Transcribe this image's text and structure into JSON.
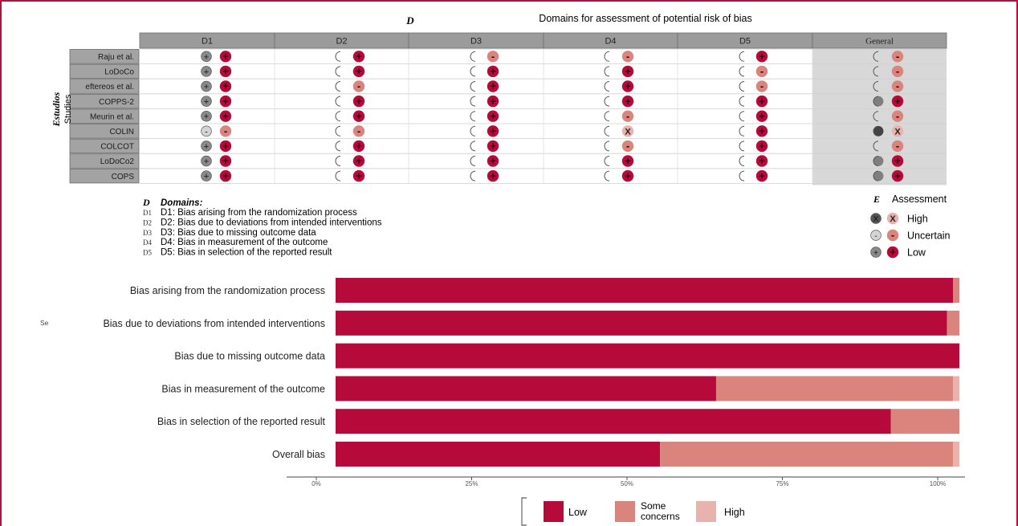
{
  "colors": {
    "low": "#b50a3a",
    "some": "#d9857e",
    "high": "#e8b2ad",
    "header_bg": "#9b9b9b",
    "general_bg": "#d8d8d8",
    "study_bg": "#a3a3a3",
    "frame": "#b5103c"
  },
  "traffic_light": {
    "title_letter": "D",
    "title": "Domains for assessment of potential risk of bias",
    "columns": [
      "D1",
      "D2",
      "D3",
      "D4",
      "D5",
      "General"
    ],
    "y_axis_label_es": "Estudios",
    "y_axis_label_en": "Studies",
    "studies": [
      "Raju et al.",
      "LoDoCo",
      "eftereos et al.",
      "COPPS-2",
      "Meurin et al.",
      "COLIN",
      "COLCOT",
      "LoDoCo2",
      "COPS"
    ],
    "judgements": [
      [
        "low",
        "low",
        "some",
        "some",
        "low",
        "some"
      ],
      [
        "low",
        "low",
        "low",
        "low",
        "some",
        "some"
      ],
      [
        "low",
        "some",
        "low",
        "low",
        "some",
        "some"
      ],
      [
        "low",
        "low",
        "low",
        "low",
        "low",
        "low"
      ],
      [
        "low",
        "low",
        "low",
        "some",
        "low",
        "some"
      ],
      [
        "some",
        "some",
        "low",
        "high",
        "low",
        "high"
      ],
      [
        "low",
        "low",
        "low",
        "some",
        "low",
        "some"
      ],
      [
        "low",
        "low",
        "low",
        "low",
        "low",
        "low"
      ],
      [
        "low",
        "low",
        "low",
        "low",
        "low",
        "low"
      ]
    ],
    "domains_key_letter": "D",
    "domains_key_title": "Domains:",
    "domains_key": [
      {
        "code": "D1",
        "text": "D1: Bias arising from the randomization process"
      },
      {
        "code": "D2",
        "text": "D2: Bias due to deviations from intended interventions"
      },
      {
        "code": "D3",
        "text": "D3: Bias due to missing outcome data"
      },
      {
        "code": "D4",
        "text": "D4: Bias in measurement of the outcome"
      },
      {
        "code": "D5",
        "text": "D5: Bias in selection of the reported result"
      }
    ],
    "assessment_letter": "E",
    "assessment_title": "Assessment",
    "assessment_items": [
      {
        "level": "high",
        "label": "High"
      },
      {
        "level": "some",
        "label": "Uncertain"
      },
      {
        "level": "low",
        "label": "Low"
      }
    ]
  },
  "chart_data": {
    "type": "bar",
    "orientation": "horizontal",
    "stacked": true,
    "categories": [
      "Bias arising from the randomization process",
      "Bias due to deviations from intended interventions",
      "Bias due to missing outcome data",
      "Bias in measurement of the outcome",
      "Bias in selection of the reported result",
      "Overall bias"
    ],
    "series": [
      {
        "name": "Low",
        "values": [
          99,
          98,
          100,
          61,
          89,
          52
        ]
      },
      {
        "name": "Some concerns",
        "values": [
          1,
          2,
          0,
          38,
          11,
          47
        ]
      },
      {
        "name": "High",
        "values": [
          0,
          0,
          0,
          1,
          0,
          1
        ]
      }
    ],
    "xlim": [
      0,
      100
    ],
    "x_ticks": [
      "0%",
      "25%",
      "50%",
      "75%",
      "100%"
    ],
    "side_label": "Se",
    "legend": {
      "position": "bottom",
      "items": [
        "Low",
        "Some\nconcerns",
        "High"
      ]
    }
  }
}
